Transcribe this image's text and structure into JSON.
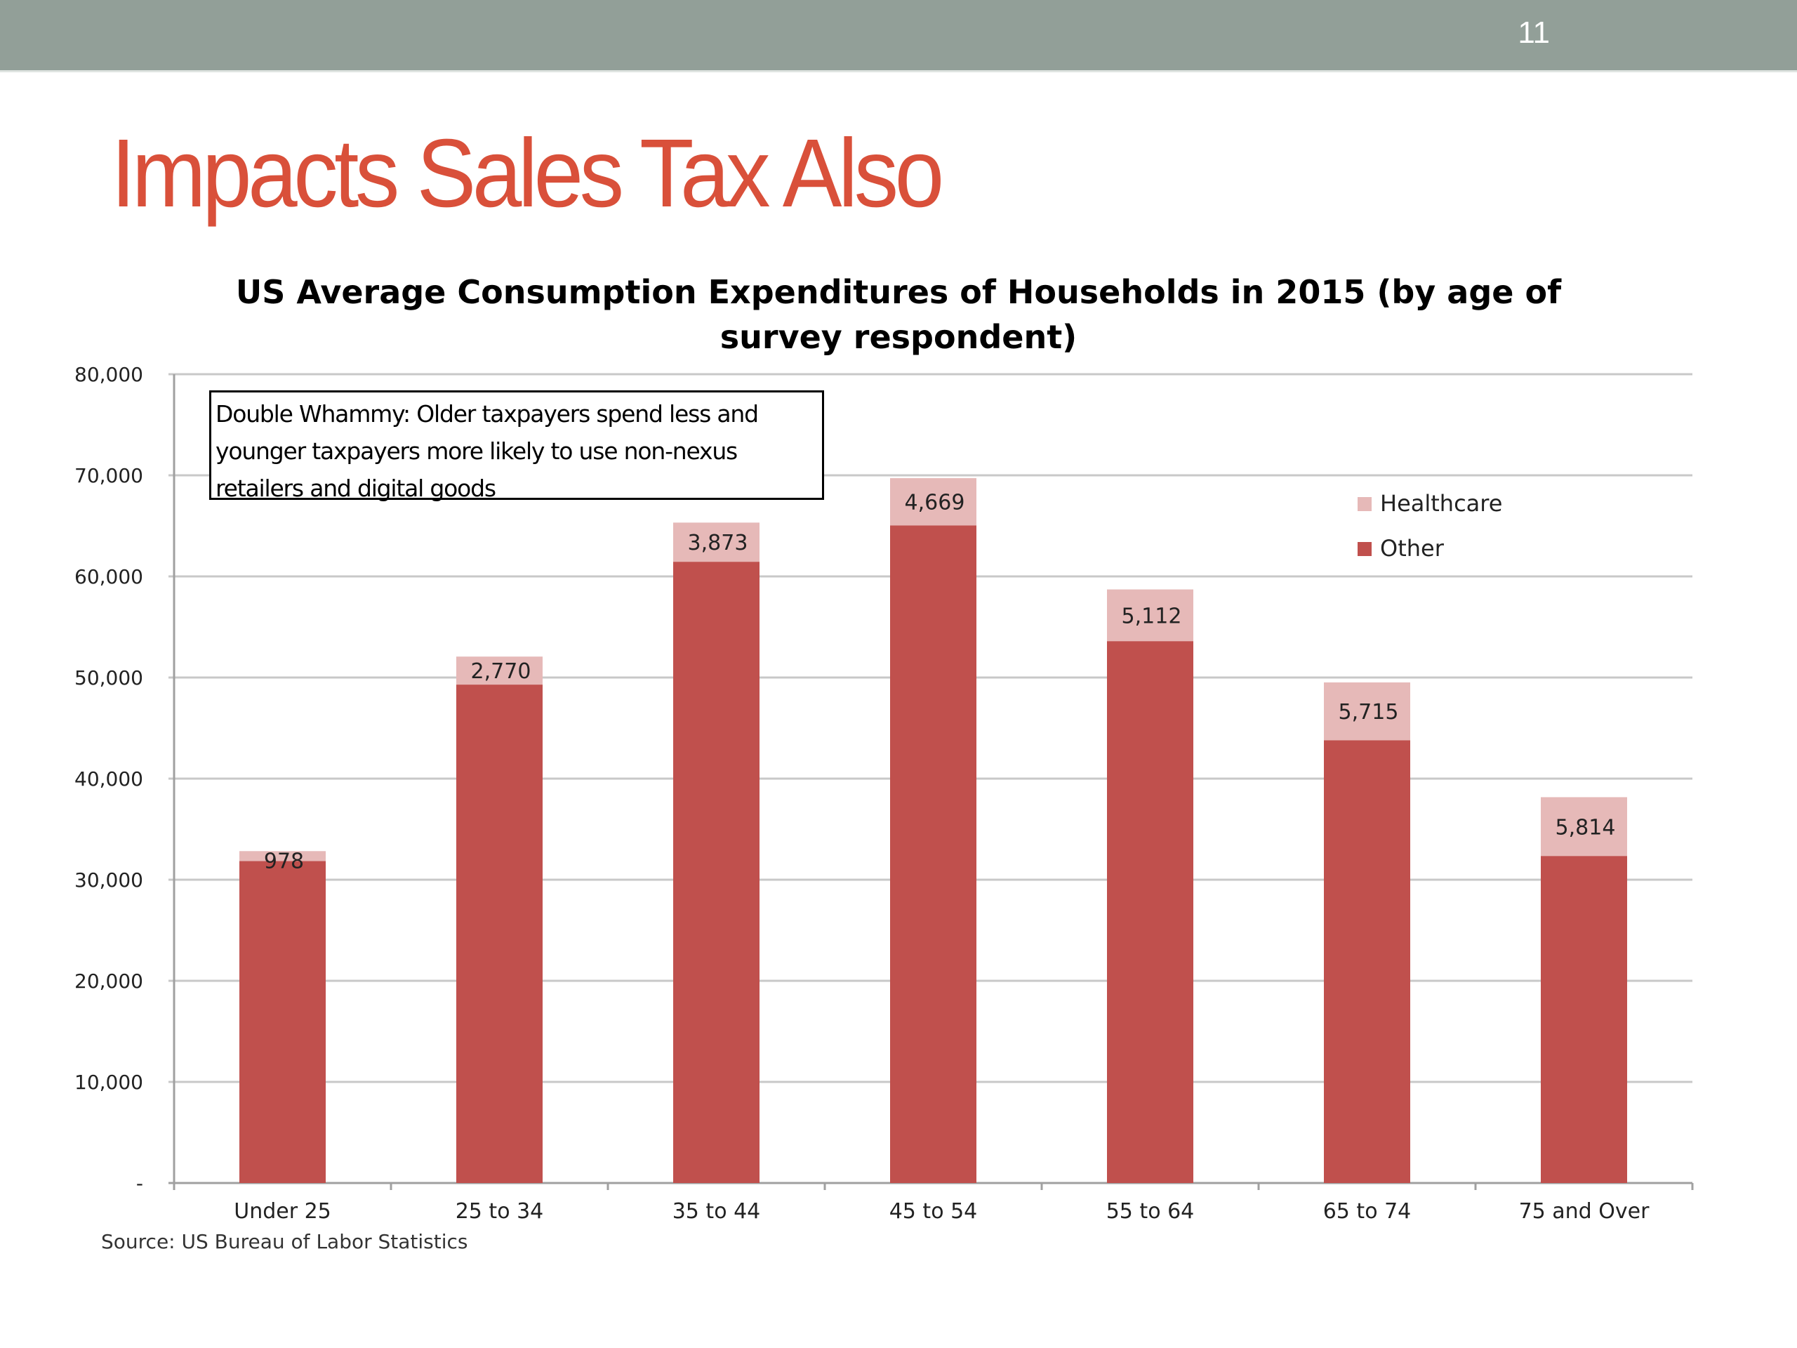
{
  "slide": {
    "number": "11",
    "title": "Impacts Sales Tax Also",
    "annotation": "Double Whammy:  Older taxpayers spend less and younger taxpayers more likely to use non-nexus retailers and digital goods",
    "source": "Source: US Bureau of Labor Statistics"
  },
  "colors": {
    "header_bar": "#929f98",
    "title": "#d9503a",
    "other": "#c0504d",
    "healthcare": "#e6b9b8",
    "gridline": "#c8c8c8"
  },
  "chart_data": {
    "type": "bar",
    "stacked": true,
    "title": "US Average Consumption Expenditures of Households in 2015 (by age of survey respondent)",
    "xlabel": "",
    "ylabel": "",
    "ylim": [
      0,
      80000
    ],
    "yticks": [
      0,
      10000,
      20000,
      30000,
      40000,
      50000,
      60000,
      70000,
      80000
    ],
    "ytick_labels": [
      "-",
      "10,000",
      "20,000",
      "30,000",
      "40,000",
      "50,000",
      "60,000",
      "70,000",
      "80,000"
    ],
    "grid": true,
    "legend_position": "top-right",
    "categories": [
      "Under 25",
      "25 to 34",
      "35 to 44",
      "45 to 54",
      "55 to 64",
      "65 to 74",
      "75 and Over"
    ],
    "series": [
      {
        "name": "Other",
        "color": "#c0504d",
        "values": [
          31850,
          49300,
          61450,
          65050,
          53600,
          43800,
          32350
        ]
      },
      {
        "name": "Healthcare",
        "color": "#e6b9b8",
        "values": [
          978,
          2770,
          3873,
          4669,
          5112,
          5715,
          5814
        ],
        "data_labels": [
          "978",
          "2,770",
          "3,873",
          "4,669",
          "5,112",
          "5,715",
          "5,814"
        ]
      }
    ],
    "legend": [
      "Healthcare",
      "Other"
    ]
  }
}
